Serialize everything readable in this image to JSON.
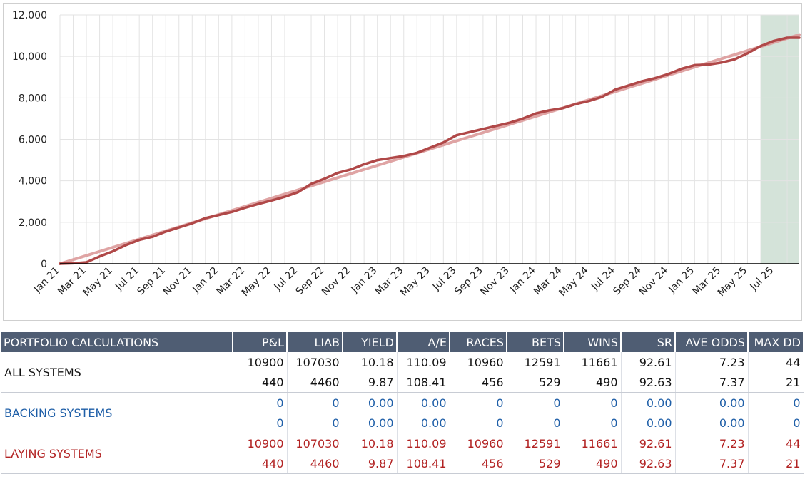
{
  "chart_data": {
    "type": "line",
    "ylim": [
      0,
      12000
    ],
    "yticks": [
      "0",
      "2,000",
      "4,000",
      "6,000",
      "8,000",
      "10,000",
      "12,000"
    ],
    "ytick_values": [
      0,
      2000,
      4000,
      6000,
      8000,
      10000,
      12000
    ],
    "x_categories": [
      "Jan 21",
      "Mar 21",
      "May 21",
      "Jul 21",
      "Sep 21",
      "Nov 21",
      "Jan 22",
      "Mar 22",
      "May 22",
      "Jul 22",
      "Sep 22",
      "Nov 22",
      "Jan 23",
      "Mar 23",
      "May 23",
      "Jul 23",
      "Sep 23",
      "Nov 23",
      "Jan 24",
      "Mar 24",
      "May 24",
      "Jul 24",
      "Sep 24",
      "Nov 24",
      "Jan 25",
      "Mar 25",
      "May 25",
      "Jul 25"
    ],
    "grid": true,
    "highlight_region": {
      "from": "Jun 25",
      "to": "Sep 25",
      "color": "#d4e3d9"
    },
    "series": [
      {
        "role": "cumulative P&L",
        "color": "#b04848",
        "points": [
          [
            "Jan 21",
            0
          ],
          [
            "Feb 21",
            20
          ],
          [
            "Mar 21",
            70
          ],
          [
            "Apr 21",
            350
          ],
          [
            "May 21",
            600
          ],
          [
            "Jun 21",
            900
          ],
          [
            "Jul 21",
            1150
          ],
          [
            "Aug 21",
            1300
          ],
          [
            "Sep 21",
            1550
          ],
          [
            "Oct 21",
            1750
          ],
          [
            "Nov 21",
            1950
          ],
          [
            "Dec 21",
            2200
          ],
          [
            "Jan 22",
            2350
          ],
          [
            "Feb 22",
            2500
          ],
          [
            "Mar 22",
            2700
          ],
          [
            "Apr 22",
            2880
          ],
          [
            "May 22",
            3050
          ],
          [
            "Jun 22",
            3230
          ],
          [
            "Jul 22",
            3450
          ],
          [
            "Aug 22",
            3850
          ],
          [
            "Sep 22",
            4100
          ],
          [
            "Oct 22",
            4380
          ],
          [
            "Nov 22",
            4550
          ],
          [
            "Dec 22",
            4800
          ],
          [
            "Jan 23",
            5000
          ],
          [
            "Feb 23",
            5100
          ],
          [
            "Mar 23",
            5200
          ],
          [
            "Apr 23",
            5350
          ],
          [
            "May 23",
            5600
          ],
          [
            "Jun 23",
            5850
          ],
          [
            "Jul 23",
            6200
          ],
          [
            "Aug 23",
            6350
          ],
          [
            "Sep 23",
            6500
          ],
          [
            "Oct 23",
            6650
          ],
          [
            "Nov 23",
            6800
          ],
          [
            "Dec 23",
            7000
          ],
          [
            "Jan 24",
            7250
          ],
          [
            "Feb 24",
            7400
          ],
          [
            "Mar 24",
            7500
          ],
          [
            "Apr 24",
            7700
          ],
          [
            "May 24",
            7850
          ],
          [
            "Jun 24",
            8050
          ],
          [
            "Jul 24",
            8400
          ],
          [
            "Aug 24",
            8600
          ],
          [
            "Sep 24",
            8800
          ],
          [
            "Oct 24",
            8950
          ],
          [
            "Nov 24",
            9150
          ],
          [
            "Dec 24",
            9400
          ],
          [
            "Jan 25",
            9580
          ],
          [
            "Feb 25",
            9600
          ],
          [
            "Mar 25",
            9700
          ],
          [
            "Apr 25",
            9850
          ],
          [
            "May 25",
            10150
          ],
          [
            "Jun 25",
            10500
          ],
          [
            "Jul 25",
            10750
          ],
          [
            "Aug 25",
            10900
          ],
          [
            "Sep 25",
            10900
          ]
        ]
      },
      {
        "role": "linear trend",
        "color": "#dc9a9a",
        "points": [
          [
            "Jan 21",
            0
          ],
          [
            "Sep 25",
            11050
          ]
        ]
      }
    ]
  },
  "table": {
    "columns": [
      "PORTFOLIO CALCULATIONS",
      "P&L",
      "LIAB",
      "YIELD",
      "A/E",
      "RACES",
      "BETS",
      "WINS",
      "SR",
      "AVE ODDS",
      "MAX DD"
    ],
    "groups": [
      {
        "name": "ALL SYSTEMS",
        "color": "#111111",
        "rows": [
          [
            "10900",
            "107030",
            "10.18",
            "110.09",
            "10960",
            "12591",
            "11661",
            "92.61",
            "7.23",
            "44"
          ],
          [
            "440",
            "4460",
            "9.87",
            "108.41",
            "456",
            "529",
            "490",
            "92.63",
            "7.37",
            "21"
          ]
        ]
      },
      {
        "name": "BACKING SYSTEMS",
        "color": "#1f5fa8",
        "rows": [
          [
            "0",
            "0",
            "0.00",
            "0.00",
            "0",
            "0",
            "0",
            "0.00",
            "0.00",
            "0"
          ],
          [
            "0",
            "0",
            "0.00",
            "0.00",
            "0",
            "0",
            "0",
            "0.00",
            "0.00",
            "0"
          ]
        ]
      },
      {
        "name": "LAYING SYSTEMS",
        "color": "#b22222",
        "rows": [
          [
            "10900",
            "107030",
            "10.18",
            "110.09",
            "10960",
            "12591",
            "11661",
            "92.61",
            "7.23",
            "44"
          ],
          [
            "440",
            "4460",
            "9.87",
            "108.41",
            "456",
            "529",
            "490",
            "92.63",
            "7.37",
            "21"
          ]
        ]
      }
    ]
  }
}
